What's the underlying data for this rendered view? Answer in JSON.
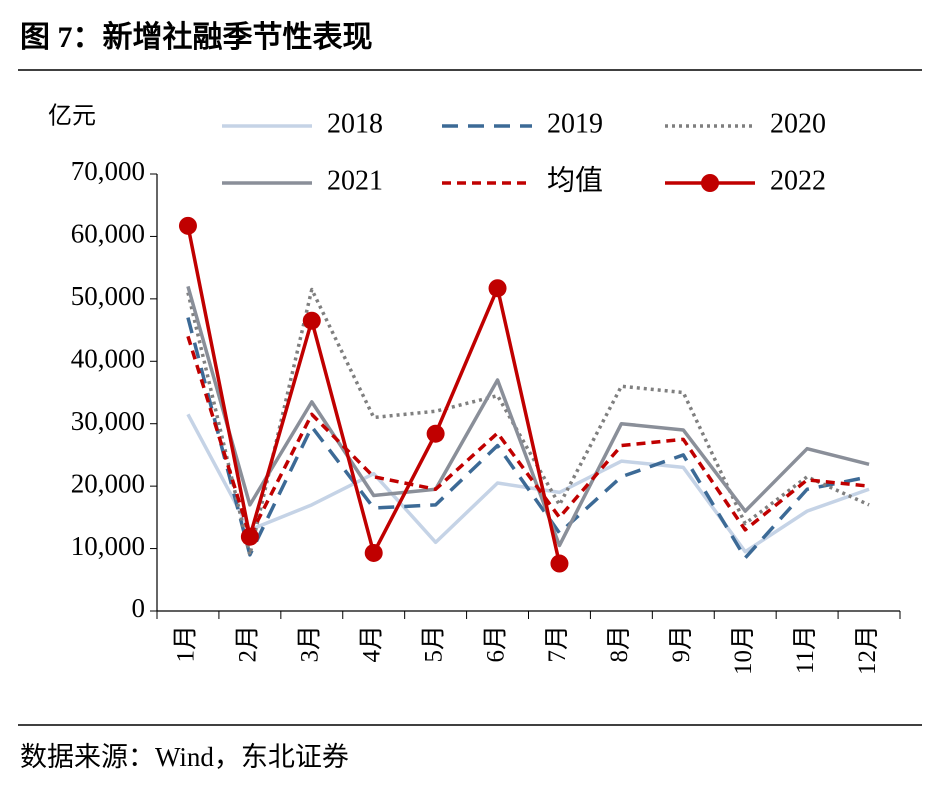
{
  "chart_data": {
    "type": "line",
    "title": "图 7：新增社融季节性表现",
    "y_label": "亿元",
    "source": "数据来源：Wind，东北证券",
    "categories": [
      "1月",
      "2月",
      "3月",
      "4月",
      "5月",
      "6月",
      "7月",
      "8月",
      "9月",
      "10月",
      "11月",
      "12月"
    ],
    "ylim": [
      0,
      70000
    ],
    "yticks": [
      0,
      {
        "value": 10000,
        "label": "10,000"
      },
      {
        "value": 20000,
        "label": "20,000"
      },
      {
        "value": 30000,
        "label": "30,000"
      },
      {
        "value": 40000,
        "label": "40,000"
      },
      {
        "value": 50000,
        "label": "50,000"
      },
      {
        "value": 60000,
        "label": "60,000"
      },
      {
        "value": 70000,
        "label": "70,000"
      }
    ],
    "grid": false,
    "legend": "top",
    "series": [
      {
        "name": "2018",
        "color": "#c5d3e6",
        "style": "solid",
        "values": [
          31500,
          13000,
          17000,
          22000,
          11000,
          20500,
          19000,
          24000,
          23000,
          9500,
          16000,
          19500
        ]
      },
      {
        "name": "2019",
        "color": "#3c6a96",
        "style": "dashed",
        "values": [
          47000,
          9000,
          29500,
          16500,
          17000,
          26500,
          12500,
          21500,
          25000,
          8500,
          19500,
          21500
        ]
      },
      {
        "name": "2020",
        "color": "#7f7f7f",
        "style": "dotted",
        "values": [
          51000,
          9000,
          51500,
          31000,
          32000,
          34500,
          17000,
          36000,
          35000,
          14000,
          21500,
          17000
        ]
      },
      {
        "name": "2021",
        "color": "#8a8f99",
        "style": "solid",
        "values": [
          52000,
          17000,
          33500,
          18500,
          19500,
          37000,
          10500,
          30000,
          29000,
          16000,
          26000,
          23500
        ]
      },
      {
        "name": "均值",
        "color": "#c00000",
        "style": "shortdash",
        "values": [
          44000,
          12000,
          31500,
          21500,
          19500,
          28500,
          15000,
          26500,
          27500,
          13000,
          21000,
          20000
        ]
      },
      {
        "name": "2022",
        "color": "#c00000",
        "style": "solid",
        "marker": true,
        "values": [
          61700,
          11900,
          46500,
          9300,
          28400,
          51700,
          7600,
          null,
          null,
          null,
          null,
          null
        ]
      }
    ]
  }
}
